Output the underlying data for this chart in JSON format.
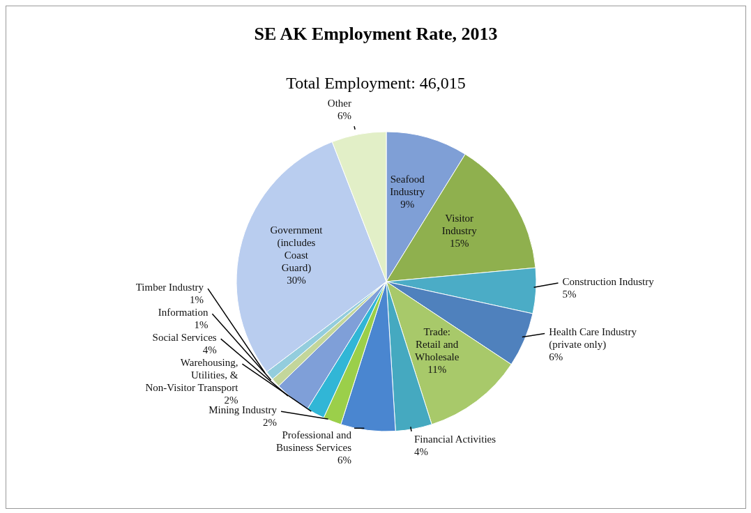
{
  "chart_data": {
    "type": "pie",
    "title": "SE AK Employment Rate, 2013",
    "subtitle": "Total Employment: 46,015",
    "categories": [
      "Seafood Industry",
      "Visitor Industry",
      "Construction Industry",
      "Health Care Industry (private only)",
      "Trade: Retail and Wholesale",
      "Financial Activities",
      "Professional and Business Services",
      "Mining Industry",
      "Warehousing, Utilities, & Non-Visitor Transport",
      "Social Services",
      "Information",
      "Timber Industry",
      "Government (includes Coast Guard)",
      "Other"
    ],
    "values": [
      9,
      15,
      5,
      6,
      11,
      4,
      6,
      2,
      2,
      4,
      1,
      1,
      30,
      6
    ],
    "colors": [
      "#7f9fd6",
      "#8fb04e",
      "#4bacc6",
      "#4f81bd",
      "#a8c96a",
      "#45a9c0",
      "#4a86d0",
      "#9bcf4a",
      "#31b6d6",
      "#7f9fd8",
      "#c3d69b",
      "#93cddd",
      "#b9cdef",
      "#e2efc7"
    ],
    "value_labels": [
      "9%",
      "15%",
      "5%",
      "6%",
      "11%",
      "4%",
      "6%",
      "2%",
      "2%",
      "4%",
      "1%",
      "1%",
      "30%",
      "6%"
    ]
  }
}
